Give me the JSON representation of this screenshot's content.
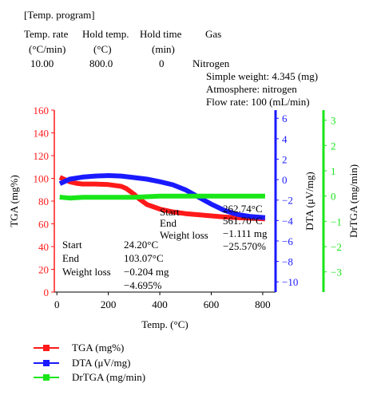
{
  "program": {
    "heading": "[Temp. program]",
    "columns": [
      "Temp. rate",
      "Hold temp.",
      "Hold time",
      "Gas"
    ],
    "units": [
      "(°C/min)",
      "(°C)",
      "(min)",
      ""
    ],
    "values": [
      "10.00",
      "800.0",
      "0",
      "Nitrogen"
    ]
  },
  "sample_info": [
    "Simple weight: 4.345 (mg)",
    "Atmosphere: nitrogen",
    "Flow rate: 100 (mL/min)"
  ],
  "annotations": {
    "step1": {
      "labels": [
        "Start",
        "End",
        "Weight loss"
      ],
      "values": [
        "24.20°C",
        "103.07°C",
        "−0.204 mg",
        "−4.695%"
      ]
    },
    "step2": {
      "labels": [
        "Start",
        "End",
        "Weight loss"
      ],
      "values": [
        "262.74°C",
        "561.70°C",
        "−1.111 mg",
        "−25.570%"
      ]
    }
  },
  "legend": [
    {
      "label": "TGA (mg%)",
      "color": "#ff1a1a"
    },
    {
      "label": "DTA (μV/mg)",
      "color": "#1a1aff"
    },
    {
      "label": "DrTGA (mg/min)",
      "color": "#19e619"
    }
  ],
  "chart_data": {
    "type": "line",
    "xlabel": "Temp. (°C)",
    "xlim": [
      -10,
      850
    ],
    "xticks": [
      0,
      200,
      400,
      600,
      800
    ],
    "axes": {
      "tga": {
        "label": "TGA (mg%)",
        "color": "#ff1a1a",
        "lim": [
          0,
          160
        ],
        "ticks": [
          0,
          20,
          40,
          60,
          80,
          100,
          120,
          140,
          160
        ]
      },
      "dta": {
        "label": "DTA (μV/mg)",
        "color": "#1a1aff",
        "lim": [
          -11,
          6.8
        ],
        "ticks": [
          6,
          4,
          2,
          0,
          -2,
          -4,
          -6,
          -8,
          -10
        ]
      },
      "drtga": {
        "label": "DrTGA (mg/min)",
        "color": "#19e619",
        "lim": [
          -3.8,
          3.4
        ],
        "ticks": [
          3,
          2,
          1,
          0,
          -1,
          -2,
          -3
        ]
      }
    },
    "series": [
      {
        "name": "TGA (mg%)",
        "axis": "tga",
        "x": [
          20,
          30,
          50,
          80,
          100,
          150,
          200,
          250,
          270,
          300,
          320,
          350,
          400,
          450,
          500,
          550,
          600,
          650,
          700,
          750,
          800
        ],
        "y": [
          100,
          99,
          97,
          95.5,
          95,
          95,
          94.5,
          93,
          91,
          86,
          82,
          77,
          73,
          70.5,
          69,
          68,
          67,
          66,
          65.5,
          65,
          64.5
        ]
      },
      {
        "name": "DTA (μV/mg)",
        "axis": "dta",
        "x": [
          20,
          50,
          100,
          150,
          200,
          250,
          300,
          350,
          400,
          450,
          500,
          550,
          600,
          650,
          700,
          750,
          800
        ],
        "y": [
          -0.3,
          0.05,
          0.25,
          0.35,
          0.4,
          0.35,
          0.2,
          0.05,
          -0.2,
          -0.5,
          -1.0,
          -1.7,
          -2.4,
          -3.0,
          -3.4,
          -3.6,
          -3.7
        ]
      },
      {
        "name": "DrTGA (mg/min)",
        "axis": "drtga",
        "x": [
          20,
          50,
          100,
          200,
          300,
          400,
          500,
          600,
          700,
          800
        ],
        "y": [
          -0.05,
          -0.08,
          -0.05,
          -0.05,
          -0.05,
          0,
          0,
          0,
          0,
          0
        ]
      }
    ]
  }
}
